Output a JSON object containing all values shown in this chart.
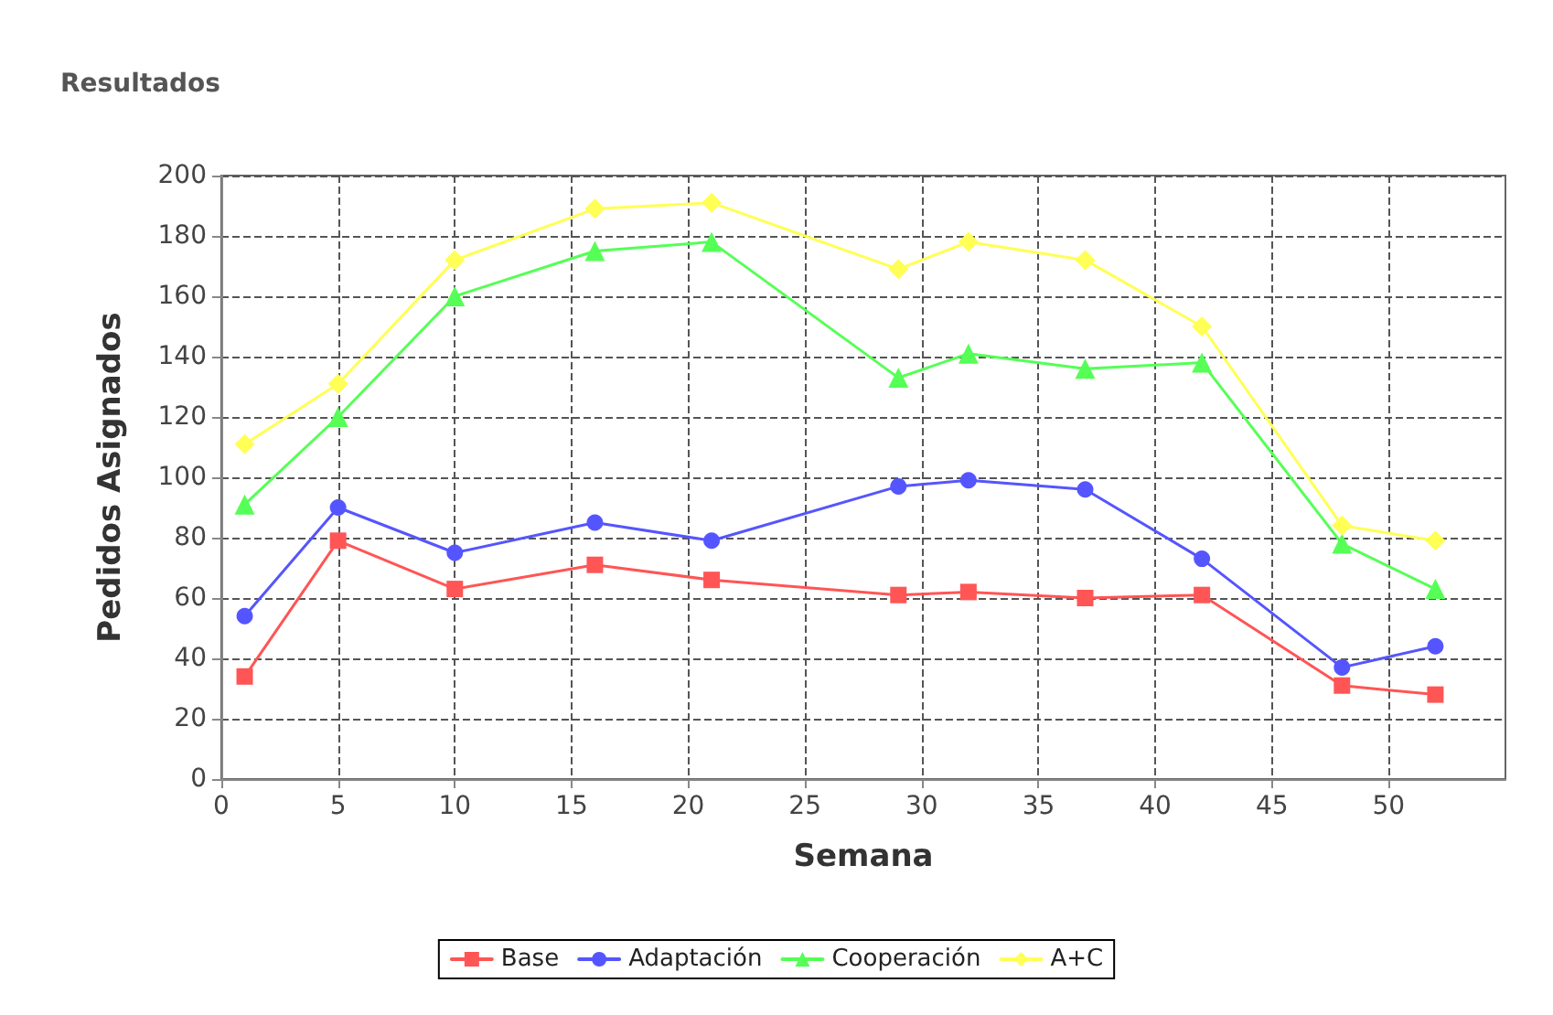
{
  "chart_data": {
    "type": "line",
    "title": "Resultados",
    "xlabel": "Semana",
    "ylabel": "Pedidos Asignados",
    "x": [
      1,
      5,
      10,
      16,
      21,
      29,
      32,
      37,
      42,
      48,
      52
    ],
    "series": [
      {
        "name": "Base",
        "color": "#ff5555",
        "marker": "square",
        "values": [
          34,
          79,
          63,
          71,
          66,
          61,
          62,
          60,
          61,
          31,
          28
        ]
      },
      {
        "name": "Adaptación",
        "color": "#5555ff",
        "marker": "circle",
        "values": [
          54,
          90,
          75,
          85,
          79,
          97,
          99,
          96,
          73,
          37,
          44
        ]
      },
      {
        "name": "Cooperación",
        "color": "#55ff55",
        "marker": "triangle",
        "values": [
          91,
          120,
          160,
          175,
          178,
          133,
          141,
          136,
          138,
          78,
          63
        ]
      },
      {
        "name": "A+C",
        "color": "#ffff55",
        "marker": "diamond",
        "values": [
          111,
          131,
          172,
          189,
          191,
          169,
          178,
          172,
          150,
          84,
          79
        ]
      }
    ],
    "xlim": [
      0,
      55
    ],
    "xticks": [
      0,
      5,
      10,
      15,
      20,
      25,
      30,
      35,
      40,
      45,
      50
    ],
    "ylim": [
      0,
      200
    ],
    "yticks": [
      0,
      20,
      40,
      60,
      80,
      100,
      120,
      140,
      160,
      180,
      200
    ],
    "grid": true,
    "legend": "bottom",
    "line_style": "solid"
  }
}
